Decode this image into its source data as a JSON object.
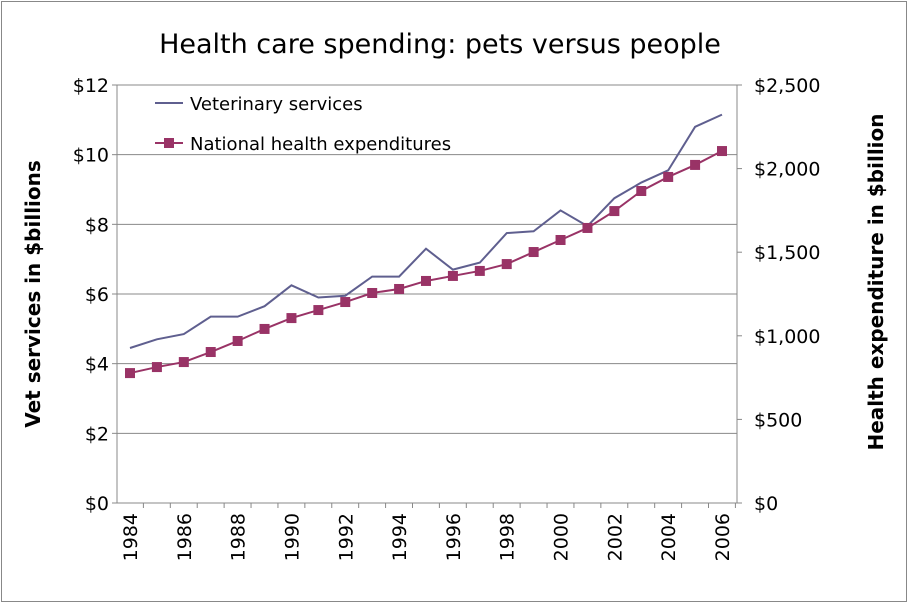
{
  "chart_data": {
    "type": "line",
    "title": "Health care spending: pets versus people",
    "ylabel": "Vet services in $billions",
    "y2label": "Health expenditure in $billion",
    "xlabel": "",
    "ylim": [
      0,
      12
    ],
    "y2lim": [
      0,
      2500
    ],
    "yticks": [
      "$0",
      "$2",
      "$4",
      "$6",
      "$8",
      "$10",
      "$12"
    ],
    "y2ticks": [
      "$0",
      "$500",
      "$1,000",
      "$1,500",
      "$2,000",
      "$2,500"
    ],
    "xticks": [
      "1984",
      "1986",
      "1988",
      "1990",
      "1992",
      "1994",
      "1996",
      "1998",
      "2000",
      "2002",
      "2004",
      "2006"
    ],
    "grid": true,
    "legend": "top-left",
    "x": [
      1984,
      1985,
      1986,
      1987,
      1988,
      1989,
      1990,
      1991,
      1992,
      1993,
      1994,
      1995,
      1996,
      1997,
      1998,
      1999,
      2000,
      2001,
      2002,
      2003,
      2004,
      2005,
      2006
    ],
    "series": [
      {
        "name": "Veterinary services",
        "axis": "left",
        "color": "#5f5f8f",
        "marker": "none",
        "values": [
          4.45,
          4.7,
          4.85,
          5.35,
          5.35,
          5.65,
          6.25,
          5.9,
          5.95,
          6.5,
          6.5,
          7.3,
          6.7,
          6.9,
          7.75,
          7.8,
          8.4,
          7.95,
          8.75,
          9.2,
          9.55,
          10.8,
          11.15
        ]
      },
      {
        "name": "National health expenditures",
        "axis": "right",
        "color": "#993366",
        "marker": "square",
        "values": [
          777,
          813,
          843,
          903,
          969,
          1041,
          1106,
          1154,
          1202,
          1256,
          1280,
          1328,
          1358,
          1388,
          1429,
          1501,
          1573,
          1645,
          1746,
          1866,
          1950,
          2022,
          2105
        ]
      }
    ]
  }
}
